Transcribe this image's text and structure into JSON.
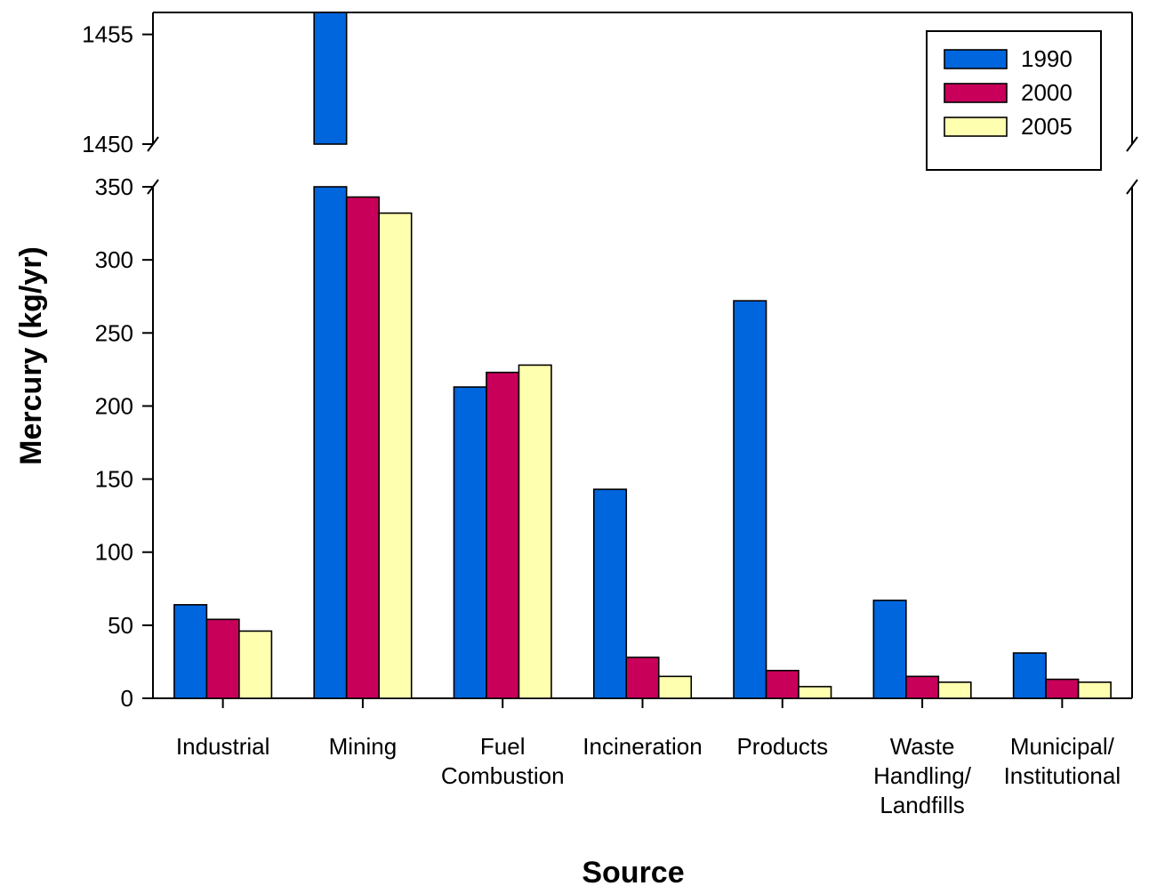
{
  "chart_data": {
    "type": "bar",
    "xlabel": "Source",
    "ylabel": "Mercury (kg/yr)",
    "categories": [
      [
        "Industrial"
      ],
      [
        "Mining"
      ],
      [
        "Fuel",
        "Combustion"
      ],
      [
        "Incineration"
      ],
      [
        "Products"
      ],
      [
        "Waste",
        "Handling/",
        "Landfills"
      ],
      [
        "Municipal/",
        "Institutional"
      ]
    ],
    "series": [
      {
        "name": "1990",
        "color": "#0066dd",
        "values": [
          64,
          1456,
          213,
          143,
          272,
          67,
          31
        ]
      },
      {
        "name": "2000",
        "color": "#c8005a",
        "values": [
          54,
          343,
          223,
          28,
          19,
          15,
          13
        ]
      },
      {
        "name": "2005",
        "color": "#ffffb0",
        "values": [
          46,
          332,
          228,
          15,
          8,
          11,
          11
        ]
      }
    ],
    "y_break": {
      "lower_range": [
        0,
        350
      ],
      "upper_range": [
        1450,
        1456
      ],
      "lower_ticks": [
        0,
        50,
        100,
        150,
        200,
        250,
        300,
        350
      ],
      "upper_ticks": [
        1450,
        1455
      ]
    },
    "legend_position": "top-right",
    "grid": false
  }
}
